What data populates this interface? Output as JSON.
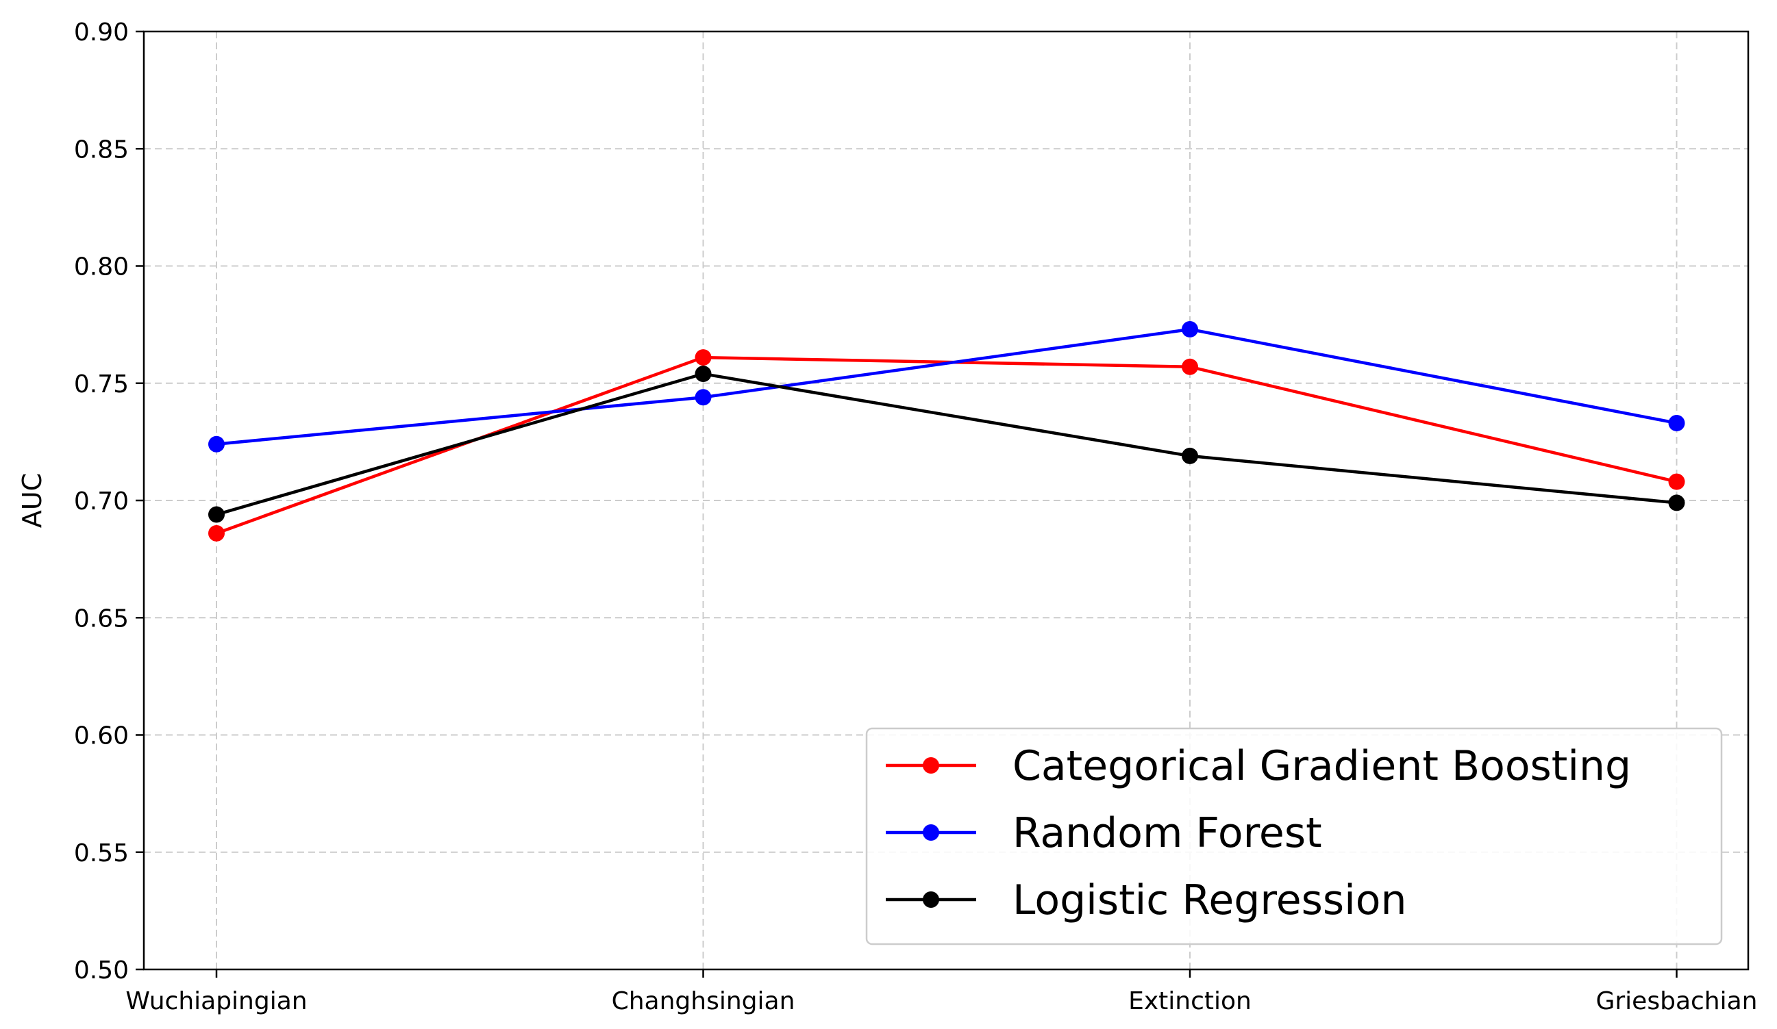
{
  "chart_data": {
    "type": "line",
    "title": "",
    "xlabel": "",
    "ylabel": "AUC",
    "categories": [
      "Wuchiapingian",
      "Changhsingian",
      "Extinction",
      "Griesbachian"
    ],
    "ylim": [
      0.5,
      0.9
    ],
    "yticks": [
      "0.50",
      "0.55",
      "0.60",
      "0.65",
      "0.70",
      "0.75",
      "0.80",
      "0.85",
      "0.90"
    ],
    "grid": true,
    "legend_position": "bottom-right",
    "series": [
      {
        "name": "Categorical Gradient Boosting",
        "color": "#ff0000",
        "values": [
          0.686,
          0.761,
          0.757,
          0.708
        ]
      },
      {
        "name": "Random Forest",
        "color": "#0000ff",
        "values": [
          0.724,
          0.744,
          0.773,
          0.733
        ]
      },
      {
        "name": "Logistic Regression",
        "color": "#000000",
        "values": [
          0.694,
          0.754,
          0.719,
          0.699
        ]
      }
    ]
  }
}
